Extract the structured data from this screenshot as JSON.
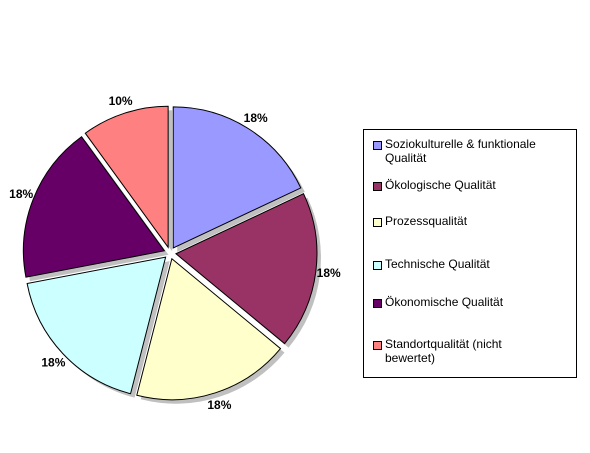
{
  "chart_data": {
    "type": "pie",
    "title": "",
    "legend_position": "right",
    "slices": [
      {
        "name": "Soziokulturelle & funktionale\nQualität",
        "value": 18,
        "label": "18%",
        "color": "#9999FF"
      },
      {
        "name": "Ökologische Qualität",
        "value": 18,
        "label": "18%",
        "color": "#993366"
      },
      {
        "name": "Prozessqualität",
        "value": 18,
        "label": "18%",
        "color": "#FFFFCC"
      },
      {
        "name": "Technische Qualität",
        "value": 18,
        "label": "18%",
        "color": "#CCFFFF"
      },
      {
        "name": "Ökonomische Qualität",
        "value": 18,
        "label": "18%",
        "color": "#660066"
      },
      {
        "name": "Standortqualität (nicht\nbewertet)",
        "value": 10,
        "label": "10%",
        "color": "#FF8080"
      }
    ]
  }
}
